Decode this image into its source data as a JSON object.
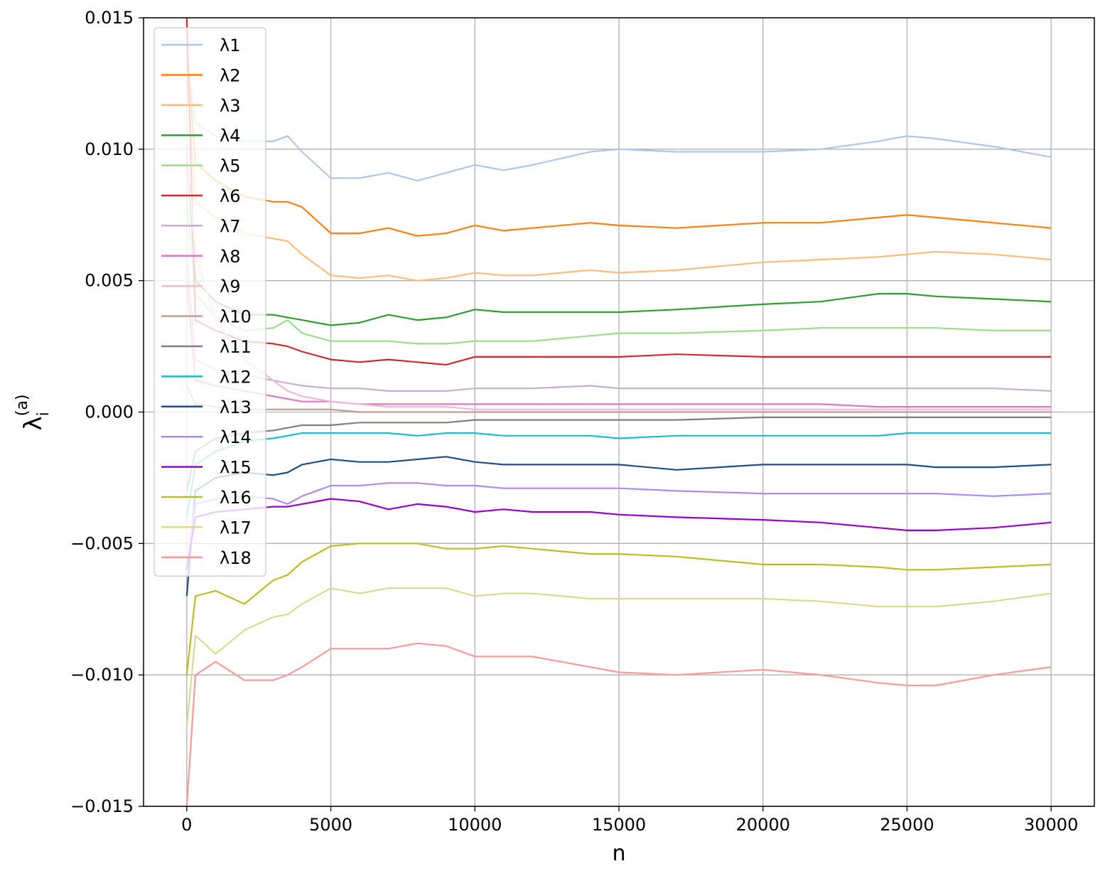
{
  "chart_data": {
    "type": "line",
    "title": "",
    "xlabel": "n",
    "ylabel_main": "λ",
    "ylabel_sub": "i",
    "ylabel_sup": "(a)",
    "xlim": [
      -1500,
      31500
    ],
    "ylim": [
      -0.015,
      0.015
    ],
    "xticks": [
      0,
      5000,
      10000,
      15000,
      20000,
      25000,
      30000
    ],
    "xtick_labels": [
      "0",
      "5000",
      "10000",
      "15000",
      "20000",
      "25000",
      "30000"
    ],
    "yticks": [
      -0.015,
      -0.01,
      -0.005,
      0.0,
      0.005,
      0.01,
      0.015
    ],
    "ytick_labels": [
      "−0.015",
      "−0.010",
      "−0.005",
      "0.000",
      "0.005",
      "0.010",
      "0.015"
    ],
    "grid": true,
    "legend_position": "upper-left",
    "x_points": [
      0,
      300,
      1000,
      2000,
      3000,
      3500,
      4000,
      5000,
      6000,
      7000,
      8000,
      9000,
      10000,
      11000,
      12000,
      14000,
      15000,
      17000,
      20000,
      22000,
      24000,
      25000,
      26000,
      28000,
      30000
    ],
    "series": [
      {
        "name": "λ1",
        "color": "#aec7e8",
        "values": [
          0.0135,
          0.011,
          0.0105,
          0.0103,
          0.0103,
          0.0105,
          0.0099,
          0.0089,
          0.0089,
          0.0091,
          0.0088,
          0.0091,
          0.0094,
          0.0092,
          0.0094,
          0.0099,
          0.01,
          0.0099,
          0.0099,
          0.01,
          0.0103,
          0.0105,
          0.0104,
          0.0101,
          0.0097
        ]
      },
      {
        "name": "λ2",
        "color": "#ff7f0e",
        "values": [
          0.014,
          0.0095,
          0.0088,
          0.0082,
          0.008,
          0.008,
          0.0078,
          0.0068,
          0.0068,
          0.007,
          0.0067,
          0.0068,
          0.0071,
          0.0069,
          0.007,
          0.0072,
          0.0071,
          0.007,
          0.0072,
          0.0072,
          0.0074,
          0.0075,
          0.0074,
          0.0072,
          0.007
        ]
      },
      {
        "name": "λ3",
        "color": "#ffbb78",
        "values": [
          0.013,
          0.008,
          0.0074,
          0.0068,
          0.0066,
          0.0065,
          0.006,
          0.0052,
          0.0051,
          0.0052,
          0.005,
          0.0051,
          0.0053,
          0.0052,
          0.0052,
          0.0054,
          0.0053,
          0.0054,
          0.0057,
          0.0058,
          0.0059,
          0.006,
          0.0061,
          0.006,
          0.0058
        ]
      },
      {
        "name": "λ4",
        "color": "#2ca02c",
        "values": [
          0.01,
          0.005,
          0.0042,
          0.0037,
          0.0037,
          0.0036,
          0.0035,
          0.0033,
          0.0034,
          0.0037,
          0.0035,
          0.0036,
          0.0039,
          0.0038,
          0.0038,
          0.0038,
          0.0038,
          0.0039,
          0.0041,
          0.0042,
          0.0045,
          0.0045,
          0.0044,
          0.0043,
          0.0042
        ]
      },
      {
        "name": "λ5",
        "color": "#98df8a",
        "values": [
          0.008,
          0.0045,
          0.0036,
          0.0031,
          0.0032,
          0.0035,
          0.003,
          0.0027,
          0.0027,
          0.0027,
          0.0026,
          0.0026,
          0.0027,
          0.0027,
          0.0027,
          0.0029,
          0.003,
          0.003,
          0.0031,
          0.0032,
          0.0032,
          0.0032,
          0.0032,
          0.0031,
          0.0031
        ]
      },
      {
        "name": "λ6",
        "color": "#d62728",
        "values": [
          0.015,
          0.0035,
          0.0031,
          0.0027,
          0.0026,
          0.0025,
          0.0023,
          0.002,
          0.0019,
          0.002,
          0.0019,
          0.0018,
          0.0021,
          0.0021,
          0.0021,
          0.0021,
          0.0021,
          0.0022,
          0.0021,
          0.0021,
          0.0021,
          0.0021,
          0.0021,
          0.0021,
          0.0021
        ]
      },
      {
        "name": "λ7",
        "color": "#c5b0d5",
        "values": [
          0.006,
          0.002,
          0.0016,
          0.0014,
          0.0012,
          0.0011,
          0.001,
          0.0009,
          0.0009,
          0.0008,
          0.0008,
          0.0008,
          0.0009,
          0.0009,
          0.0009,
          0.001,
          0.0009,
          0.0009,
          0.0009,
          0.0009,
          0.0009,
          0.0009,
          0.0009,
          0.0009,
          0.0008
        ]
      },
      {
        "name": "λ8",
        "color": "#e377c2",
        "values": [
          0.005,
          0.0012,
          0.001,
          0.0008,
          0.0006,
          0.0005,
          0.0004,
          0.0004,
          0.0003,
          0.0003,
          0.0003,
          0.0003,
          0.0003,
          0.0003,
          0.0003,
          0.0003,
          0.0003,
          0.0003,
          0.0003,
          0.0003,
          0.0002,
          0.0002,
          0.0002,
          0.0002,
          0.0002
        ]
      },
      {
        "name": "λ9",
        "color": "#f7b6d2",
        "values": [
          0.01,
          0.006,
          0.0035,
          0.002,
          0.0012,
          0.0008,
          0.0006,
          0.0004,
          0.0003,
          0.0002,
          0.0002,
          0.0002,
          0.0001,
          0.0001,
          0.0001,
          0.0001,
          0.0001,
          0.0001,
          0.0001,
          0.0001,
          0.0001,
          0.0001,
          0.0001,
          0.0001,
          0.0001
        ]
      },
      {
        "name": "λ10",
        "color": "#c49c94",
        "values": [
          0.001,
          0.0003,
          0.0002,
          0.0001,
          0.0001,
          0.0001,
          0.0001,
          0.0001,
          0.0,
          0.0,
          0.0,
          0.0,
          0.0,
          0.0,
          0.0,
          0.0,
          0.0,
          0.0,
          0.0,
          0.0,
          0.0,
          0.0,
          0.0,
          0.0,
          0.0
        ]
      },
      {
        "name": "λ11",
        "color": "#7f7f7f",
        "values": [
          -0.003,
          -0.0015,
          -0.001,
          -0.0008,
          -0.0007,
          -0.0006,
          -0.0005,
          -0.0005,
          -0.0004,
          -0.0004,
          -0.0004,
          -0.0004,
          -0.0003,
          -0.0003,
          -0.0003,
          -0.0003,
          -0.0003,
          -0.0003,
          -0.0002,
          -0.0002,
          -0.0002,
          -0.0002,
          -0.0002,
          -0.0002,
          -0.0002
        ]
      },
      {
        "name": "λ12",
        "color": "#17becf",
        "values": [
          -0.004,
          -0.002,
          -0.0015,
          -0.0011,
          -0.001,
          -0.0009,
          -0.0008,
          -0.0008,
          -0.0008,
          -0.0008,
          -0.0009,
          -0.0008,
          -0.0008,
          -0.0009,
          -0.0009,
          -0.0009,
          -0.001,
          -0.0009,
          -0.0009,
          -0.0009,
          -0.0009,
          -0.0008,
          -0.0008,
          -0.0008,
          -0.0008
        ]
      },
      {
        "name": "λ13",
        "color": "#1f4e8c",
        "values": [
          -0.007,
          -0.003,
          -0.0025,
          -0.0023,
          -0.0024,
          -0.0023,
          -0.002,
          -0.0018,
          -0.0019,
          -0.0019,
          -0.0018,
          -0.0017,
          -0.0019,
          -0.002,
          -0.002,
          -0.002,
          -0.002,
          -0.0022,
          -0.002,
          -0.002,
          -0.002,
          -0.002,
          -0.0021,
          -0.0021,
          -0.002
        ]
      },
      {
        "name": "λ14",
        "color": "#b088f5",
        "values": [
          -0.006,
          -0.0035,
          -0.0033,
          -0.0032,
          -0.0033,
          -0.0035,
          -0.0032,
          -0.0028,
          -0.0028,
          -0.0027,
          -0.0027,
          -0.0028,
          -0.0028,
          -0.0029,
          -0.0029,
          -0.0029,
          -0.0029,
          -0.003,
          -0.0031,
          -0.0031,
          -0.0031,
          -0.0031,
          -0.0031,
          -0.0032,
          -0.0031
        ]
      },
      {
        "name": "λ15",
        "color": "#9b00d3",
        "values": [
          -0.006,
          -0.004,
          -0.0038,
          -0.0037,
          -0.0036,
          -0.0036,
          -0.0035,
          -0.0033,
          -0.0034,
          -0.0037,
          -0.0035,
          -0.0036,
          -0.0038,
          -0.0037,
          -0.0038,
          -0.0038,
          -0.0039,
          -0.004,
          -0.0041,
          -0.0042,
          -0.0044,
          -0.0045,
          -0.0045,
          -0.0044,
          -0.0042
        ]
      },
      {
        "name": "λ16",
        "color": "#bcbd22",
        "values": [
          -0.01,
          -0.007,
          -0.0068,
          -0.0073,
          -0.0064,
          -0.0062,
          -0.0057,
          -0.0051,
          -0.005,
          -0.005,
          -0.005,
          -0.0052,
          -0.0052,
          -0.0051,
          -0.0052,
          -0.0054,
          -0.0054,
          -0.0055,
          -0.0058,
          -0.0058,
          -0.0059,
          -0.006,
          -0.006,
          -0.0059,
          -0.0058
        ]
      },
      {
        "name": "λ17",
        "color": "#dbdb8d",
        "values": [
          -0.012,
          -0.0085,
          -0.0092,
          -0.0083,
          -0.0078,
          -0.0077,
          -0.0073,
          -0.0067,
          -0.0069,
          -0.0067,
          -0.0067,
          -0.0067,
          -0.007,
          -0.0069,
          -0.0069,
          -0.0071,
          -0.0071,
          -0.0071,
          -0.0071,
          -0.0072,
          -0.0074,
          -0.0074,
          -0.0074,
          -0.0072,
          -0.0069
        ]
      },
      {
        "name": "λ18",
        "color": "#ff9896",
        "values": [
          -0.015,
          -0.01,
          -0.0095,
          -0.0102,
          -0.0102,
          -0.01,
          -0.0097,
          -0.009,
          -0.009,
          -0.009,
          -0.0088,
          -0.0089,
          -0.0093,
          -0.0093,
          -0.0093,
          -0.0097,
          -0.0099,
          -0.01,
          -0.0098,
          -0.01,
          -0.0103,
          -0.0104,
          -0.0104,
          -0.01,
          -0.0097
        ]
      }
    ]
  }
}
